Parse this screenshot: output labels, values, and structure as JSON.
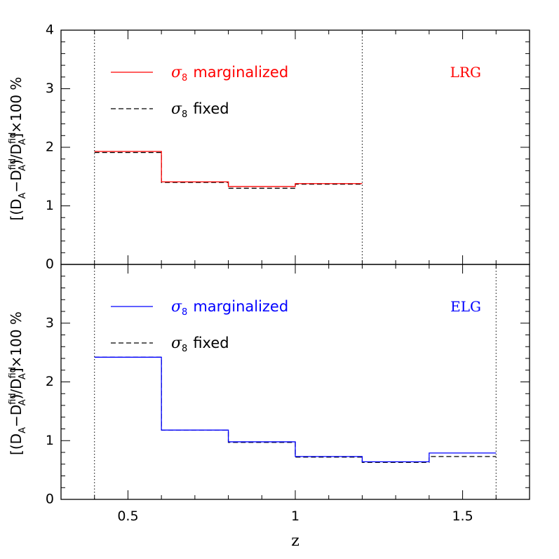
{
  "chart_data": [
    {
      "type": "line",
      "panel": "top",
      "tag": "LRG",
      "tag_color": "#ff0000",
      "ylabel": "[(D_A−D_A^fid)/D_A^fid]×100 %",
      "xlabel": "",
      "xlim": [
        0.3,
        1.7
      ],
      "ylim": [
        0,
        4
      ],
      "y_ticks": [
        "0",
        "1",
        "2",
        "3",
        "4"
      ],
      "x_ticks": [],
      "vlines": [
        0.4,
        1.2
      ],
      "bin_edges": [
        0.4,
        0.6,
        0.8,
        1.0,
        1.2
      ],
      "series": [
        {
          "name": "σ8 marginalized",
          "style": "solid",
          "color": "#ff0000",
          "values": [
            1.93,
            1.41,
            1.33,
            1.38
          ]
        },
        {
          "name": "σ8 fixed",
          "style": "dashed",
          "color": "#000000",
          "values": [
            1.91,
            1.4,
            1.3,
            1.37
          ]
        }
      ]
    },
    {
      "type": "line",
      "panel": "bottom",
      "tag": "ELG",
      "tag_color": "#0000ff",
      "ylabel": "[(D_A−D_A^fid)/D_A^fid]×100 %",
      "xlabel": "z",
      "xlim": [
        0.3,
        1.7
      ],
      "ylim": [
        0,
        4
      ],
      "y_ticks": [
        "0",
        "1",
        "2",
        "3"
      ],
      "x_ticks": [
        "0.5",
        "1",
        "1.5"
      ],
      "vlines": [
        0.4,
        1.6
      ],
      "bin_edges": [
        0.4,
        0.6,
        0.8,
        1.0,
        1.2,
        1.4,
        1.6
      ],
      "series": [
        {
          "name": "σ8 marginalized",
          "style": "solid",
          "color": "#0000ff",
          "values": [
            2.42,
            1.18,
            0.98,
            0.73,
            0.64,
            0.79
          ]
        },
        {
          "name": "σ8 fixed",
          "style": "dashed",
          "color": "#000000",
          "values": [
            2.42,
            1.18,
            0.97,
            0.72,
            0.63,
            0.73
          ]
        }
      ]
    }
  ],
  "legend": {
    "marginalized_label": "marginalized",
    "fixed_label": "fixed",
    "sigma_symbol": "σ",
    "sigma_sub": "8"
  },
  "ylabel_parts": {
    "open": "[(D",
    "A": "A",
    "minus": "−D",
    "fid": "fid",
    "slash": ")/D",
    "close": "]×100 %"
  }
}
